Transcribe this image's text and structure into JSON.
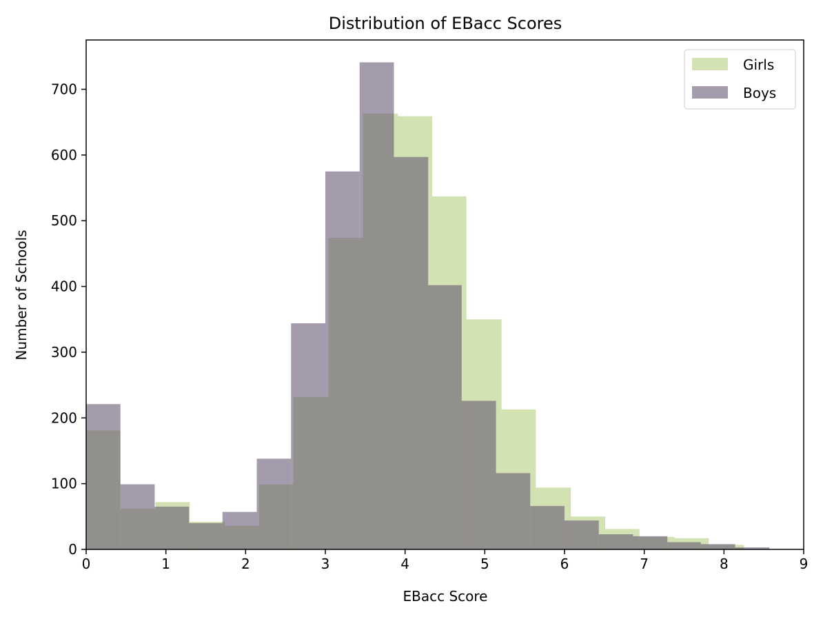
{
  "chart_data": {
    "type": "histogram",
    "title": "Distribution of EBacc Scores",
    "xlabel": "EBacc Score",
    "ylabel": "Number of Schools",
    "xlim": [
      0,
      9
    ],
    "ylim": [
      0,
      775
    ],
    "xticks": [
      0,
      1,
      2,
      3,
      4,
      5,
      6,
      7,
      8,
      9
    ],
    "yticks": [
      0,
      100,
      200,
      300,
      400,
      500,
      600,
      700
    ],
    "grid": false,
    "legend_position": "top-right",
    "series": [
      {
        "name": "Girls",
        "color": "#b5cf7f",
        "opacity": 0.6,
        "bins": [
          {
            "x0": 0.0,
            "x1": 0.43,
            "value": 181
          },
          {
            "x0": 0.43,
            "x1": 0.87,
            "value": 62
          },
          {
            "x0": 0.87,
            "x1": 1.3,
            "value": 72
          },
          {
            "x0": 1.3,
            "x1": 1.74,
            "value": 42
          },
          {
            "x0": 1.74,
            "x1": 2.17,
            "value": 36
          },
          {
            "x0": 2.17,
            "x1": 2.6,
            "value": 99
          },
          {
            "x0": 2.6,
            "x1": 3.04,
            "value": 232
          },
          {
            "x0": 3.04,
            "x1": 3.47,
            "value": 474
          },
          {
            "x0": 3.47,
            "x1": 3.91,
            "value": 663
          },
          {
            "x0": 3.91,
            "x1": 4.34,
            "value": 659
          },
          {
            "x0": 4.34,
            "x1": 4.77,
            "value": 537
          },
          {
            "x0": 4.77,
            "x1": 5.21,
            "value": 350
          },
          {
            "x0": 5.21,
            "x1": 5.64,
            "value": 213
          },
          {
            "x0": 5.64,
            "x1": 6.08,
            "value": 94
          },
          {
            "x0": 6.08,
            "x1": 6.51,
            "value": 50
          },
          {
            "x0": 6.51,
            "x1": 6.94,
            "value": 31
          },
          {
            "x0": 6.94,
            "x1": 7.38,
            "value": 19
          },
          {
            "x0": 7.38,
            "x1": 7.81,
            "value": 17
          },
          {
            "x0": 7.81,
            "x1": 8.25,
            "value": 7
          }
        ]
      },
      {
        "name": "Boys",
        "color": "#675a74",
        "opacity": 0.6,
        "bins": [
          {
            "x0": 0.0,
            "x1": 0.43,
            "value": 221
          },
          {
            "x0": 0.43,
            "x1": 0.86,
            "value": 99
          },
          {
            "x0": 0.86,
            "x1": 1.29,
            "value": 65
          },
          {
            "x0": 1.29,
            "x1": 1.71,
            "value": 40
          },
          {
            "x0": 1.71,
            "x1": 2.14,
            "value": 57
          },
          {
            "x0": 2.14,
            "x1": 2.57,
            "value": 138
          },
          {
            "x0": 2.57,
            "x1": 3.0,
            "value": 344
          },
          {
            "x0": 3.0,
            "x1": 3.43,
            "value": 575
          },
          {
            "x0": 3.43,
            "x1": 3.86,
            "value": 741
          },
          {
            "x0": 3.86,
            "x1": 4.29,
            "value": 597
          },
          {
            "x0": 4.29,
            "x1": 4.71,
            "value": 402
          },
          {
            "x0": 4.71,
            "x1": 5.14,
            "value": 226
          },
          {
            "x0": 5.14,
            "x1": 5.57,
            "value": 116
          },
          {
            "x0": 5.57,
            "x1": 6.0,
            "value": 66
          },
          {
            "x0": 6.0,
            "x1": 6.43,
            "value": 44
          },
          {
            "x0": 6.43,
            "x1": 6.86,
            "value": 23
          },
          {
            "x0": 6.86,
            "x1": 7.29,
            "value": 20
          },
          {
            "x0": 7.29,
            "x1": 7.71,
            "value": 11
          },
          {
            "x0": 7.71,
            "x1": 8.14,
            "value": 8
          },
          {
            "x0": 8.14,
            "x1": 8.57,
            "value": 3
          }
        ]
      }
    ]
  }
}
